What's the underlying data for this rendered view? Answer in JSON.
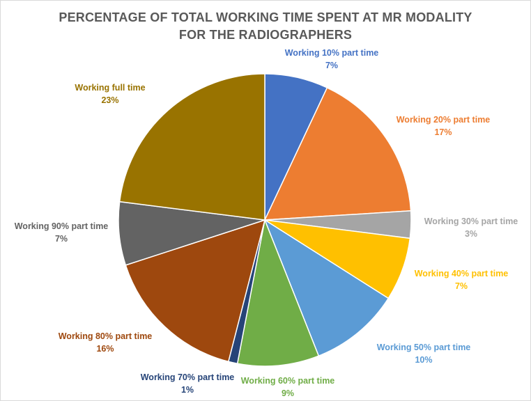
{
  "chart_data": {
    "type": "pie",
    "title": "PERCENTAGE  OF TOTAL WORKING TIME SPENT AT MR MODALITY",
    "subtitle": "FOR THE RADIOGRAPHERS",
    "slices": [
      {
        "label": "Working 10% part time",
        "value": 7,
        "value_label": "7%",
        "color": "#4472C4"
      },
      {
        "label": "Working 20% part time",
        "value": 17,
        "value_label": "17%",
        "color": "#ED7D31"
      },
      {
        "label": "Working 30% part time",
        "value": 3,
        "value_label": "3%",
        "color": "#A5A5A5"
      },
      {
        "label": "Working 40% part time",
        "value": 7,
        "value_label": "7%",
        "color": "#FFC000"
      },
      {
        "label": "Working 50% part time",
        "value": 10,
        "value_label": "10%",
        "color": "#5B9BD5"
      },
      {
        "label": "Working 60% part time",
        "value": 9,
        "value_label": "9%",
        "color": "#70AD47"
      },
      {
        "label": "Working 70% part time",
        "value": 1,
        "value_label": "1%",
        "color": "#264478"
      },
      {
        "label": "Working 80% part time",
        "value": 16,
        "value_label": "16%",
        "color": "#9E480E"
      },
      {
        "label": "Working 90% part time",
        "value": 7,
        "value_label": "7%",
        "color": "#636363"
      },
      {
        "label": "Working full time",
        "value": 23,
        "value_label": "23%",
        "color": "#997300"
      }
    ]
  }
}
